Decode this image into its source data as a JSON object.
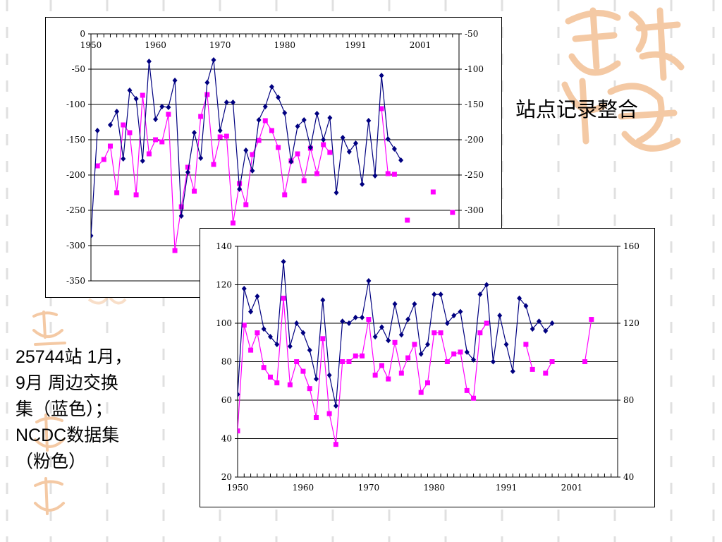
{
  "slide": {
    "title": "站点记录整合",
    "caption_lines": [
      "25744站 1月，",
      "9月 周边交换",
      "集（蓝色）；",
      "NCDC数据集",
      "（粉色）"
    ]
  },
  "colors": {
    "series_station": "#000080",
    "series_ncdc": "#ff00ff",
    "decor_peach": "#f4c9a4",
    "dash": "#e0e0e0"
  },
  "icons": {
    "decor_top_right": "seal-calligraphy-icon",
    "decor_left": "seal-calligraphy-icon"
  },
  "chart_data": [
    {
      "type": "line",
      "x_labels": [
        "1950",
        "1960",
        "1970",
        "1980",
        "1991",
        "2001"
      ],
      "x_label_years": [
        1950,
        1960,
        1970,
        1980,
        1991,
        2001
      ],
      "xlim": [
        1950,
        2007
      ],
      "y_left": {
        "ylim": [
          -350,
          0
        ],
        "ticks": [
          0,
          -50,
          -100,
          -150,
          -200,
          -250,
          -300,
          -350
        ],
        "labels": [
          "0",
          "-50",
          "-100",
          "-150",
          "-200",
          "-250",
          "-300",
          "-350"
        ]
      },
      "y_right": {
        "ylim": [
          -400,
          -50
        ],
        "ticks": [
          -50,
          -100,
          -150,
          -200,
          -250,
          -300
        ],
        "labels": [
          "-50",
          "-100",
          "-150",
          "-200",
          "-250",
          "-300"
        ]
      },
      "grid": true,
      "legend": "none",
      "series": [
        {
          "axis": "left",
          "marker": "diamond",
          "x": [
            1950,
            1951,
            1952,
            1953,
            1954,
            1955,
            1956,
            1957,
            1958,
            1959,
            1960,
            1961,
            1962,
            1963,
            1964,
            1965,
            1966,
            1967,
            1968,
            1969,
            1970,
            1971,
            1972,
            1973,
            1974,
            1975,
            1976,
            1977,
            1978,
            1979,
            1980,
            1981,
            1982,
            1983,
            1984,
            1985,
            1986,
            1987,
            1988,
            1989,
            1990,
            1991,
            1992,
            1993,
            1994,
            1995,
            1996,
            1997,
            1998
          ],
          "y": [
            -286,
            -137,
            null,
            -129,
            -110,
            -177,
            -80,
            -92,
            -180,
            -39,
            -121,
            -103,
            -104,
            -66,
            -258,
            -196,
            -140,
            -176,
            -69,
            -37,
            -137,
            -97,
            -97,
            -220,
            -165,
            -194,
            -122,
            -103,
            -75,
            -90,
            -112,
            -181,
            -131,
            -122,
            -161,
            -113,
            -150,
            -119,
            -225,
            -147,
            -167,
            -155,
            -213,
            -123,
            -201,
            -59,
            -149,
            -163,
            -179
          ]
        },
        {
          "axis": "right",
          "marker": "square",
          "x": [
            1951,
            1952,
            1953,
            1954,
            1955,
            1956,
            1957,
            1958,
            1959,
            1960,
            1961,
            1962,
            1963,
            1964,
            1965,
            1966,
            1967,
            1968,
            1969,
            1970,
            1971,
            1972,
            1973,
            1974,
            1975,
            1976,
            1977,
            1978,
            1979,
            1980,
            1981,
            1982,
            1983,
            1984,
            1985,
            1986,
            1987,
            1995,
            1996,
            1997,
            1999,
            2003,
            2006
          ],
          "y": [
            -237,
            -228,
            -209,
            -275,
            -179,
            -190,
            -278,
            -137,
            -220,
            -200,
            -203,
            -164,
            -357,
            -295,
            -239,
            -273,
            -167,
            -136,
            -235,
            -196,
            -195,
            -318,
            -262,
            -292,
            -221,
            -201,
            -173,
            -187,
            -211,
            -278,
            -230,
            -220,
            -258,
            -212,
            -248,
            -207,
            -218,
            -156,
            -248,
            -249,
            -314,
            -274,
            -303
          ]
        }
      ]
    },
    {
      "type": "line",
      "x_labels": [
        "1950",
        "1960",
        "1970",
        "1980",
        "1991",
        "2001"
      ],
      "x_label_years": [
        1950,
        1960,
        1970,
        1980,
        1991,
        2001
      ],
      "xlim": [
        1950,
        2008
      ],
      "y_left": {
        "ylim": [
          20,
          140
        ],
        "ticks": [
          20,
          40,
          60,
          80,
          100,
          120,
          140
        ],
        "labels": [
          "20",
          "40",
          "60",
          "80",
          "100",
          "120",
          "140"
        ]
      },
      "y_right": {
        "ylim": [
          40,
          160
        ],
        "ticks": [
          40,
          80,
          120,
          160
        ],
        "labels": [
          "40",
          "80",
          "120",
          "160"
        ]
      },
      "grid": true,
      "legend": "none",
      "series": [
        {
          "axis": "left",
          "marker": "diamond",
          "x": [
            1950,
            1951,
            1952,
            1953,
            1954,
            1955,
            1956,
            1957,
            1958,
            1959,
            1960,
            1961,
            1962,
            1963,
            1964,
            1965,
            1966,
            1967,
            1968,
            1969,
            1970,
            1971,
            1972,
            1973,
            1974,
            1975,
            1976,
            1977,
            1978,
            1979,
            1980,
            1981,
            1982,
            1983,
            1984,
            1985,
            1986,
            1987,
            1988,
            1989,
            1990,
            1991,
            1992,
            1993,
            1994,
            1995,
            1996,
            1997,
            1998
          ],
          "y": [
            63,
            118,
            106,
            114,
            97,
            93,
            89,
            132,
            88,
            100,
            95,
            86,
            71,
            112,
            73,
            57,
            101,
            100,
            103,
            103,
            122,
            93,
            98,
            91,
            110,
            94,
            102,
            110,
            84,
            89,
            115,
            115,
            100,
            104,
            106,
            85,
            81,
            115,
            120,
            80,
            104,
            89,
            75,
            113,
            109,
            97,
            101,
            96,
            100
          ]
        },
        {
          "axis": "right",
          "marker": "square",
          "x": [
            1950,
            1951,
            1952,
            1953,
            1954,
            1955,
            1956,
            1957,
            1958,
            1959,
            1960,
            1961,
            1962,
            1963,
            1964,
            1965,
            1966,
            1967,
            1968,
            1969,
            1970,
            1971,
            1972,
            1973,
            1974,
            1975,
            1976,
            1977,
            1978,
            1979,
            1980,
            1981,
            1982,
            1983,
            1984,
            1985,
            1986,
            1987,
            1988,
            1994,
            1995,
            1997,
            1998,
            2003,
            2004
          ],
          "y": [
            64,
            119,
            106,
            115,
            97,
            92,
            89,
            133,
            88,
            100,
            95,
            86,
            71,
            112,
            73,
            57,
            100,
            100,
            103,
            103,
            122,
            93,
            98,
            91,
            110,
            94,
            102,
            109,
            84,
            89,
            115,
            115,
            100,
            104,
            105,
            85,
            81,
            115,
            120,
            109,
            96,
            94,
            100,
            100,
            122
          ]
        }
      ]
    }
  ]
}
